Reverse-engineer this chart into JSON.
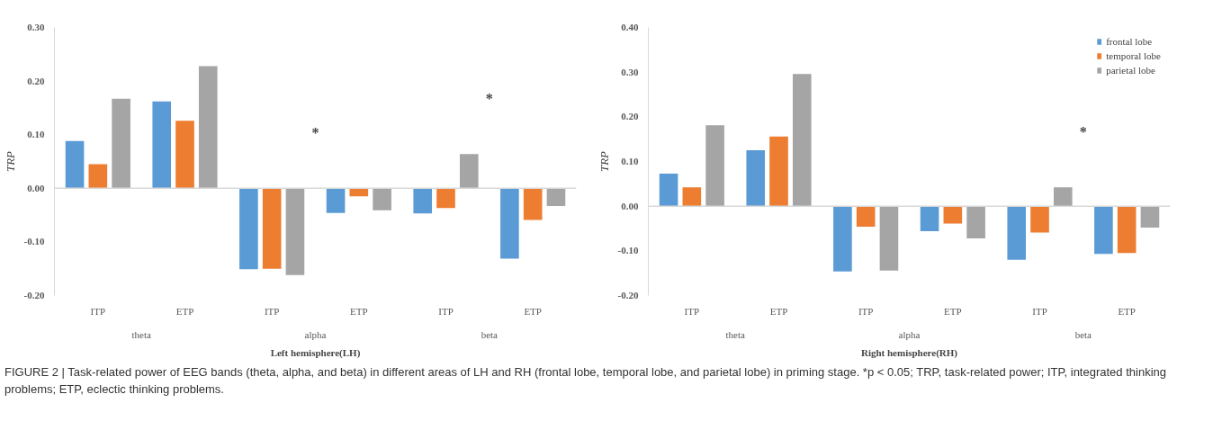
{
  "chart_data": [
    {
      "type": "bar",
      "ylabel": "TRP",
      "xlabel": "Left hemisphere(LH)",
      "categories": [
        "ITP",
        "ETP",
        "ITP",
        "ETP",
        "ITP",
        "ETP"
      ],
      "series": [
        {
          "color": "#5b9bd5",
          "values": [
            0.088,
            0.162,
            -0.151,
            -0.046,
            -0.047,
            -0.131
          ]
        },
        {
          "color": "#ed7d31",
          "values": [
            0.045,
            0.126,
            -0.15,
            -0.015,
            -0.037,
            -0.059
          ]
        },
        {
          "color": "#a5a5a5",
          "values": [
            0.167,
            0.228,
            -0.162,
            -0.041,
            0.064,
            -0.033
          ]
        }
      ],
      "ylim": [
        -0.2,
        0.3
      ],
      "yticks": [
        {
          "value": -0.2,
          "label": "-0.20"
        },
        {
          "value": -0.1,
          "label": "-0.10"
        },
        {
          "value": 0,
          "label": "0.00"
        },
        {
          "value": 0.1,
          "label": "0.10"
        },
        {
          "value": 0.2,
          "label": "0.20"
        },
        {
          "value": 0.3,
          "label": "0.30"
        }
      ],
      "ref_lines": [
        {
          "axis": "y",
          "value": 0,
          "color": "#d9d9d9"
        }
      ],
      "annotations": [
        "theta",
        "alpha",
        "beta",
        "*",
        "*"
      ]
    },
    {
      "type": "bar",
      "ylabel": "TRP",
      "xlabel": "Right hemisphere(RH)",
      "categories": [
        "ITP",
        "ETP",
        "ITP",
        "ETP",
        "ITP",
        "ETP"
      ],
      "series": [
        {
          "name": "frontal lobe",
          "color": "#5b9bd5",
          "values": [
            0.073,
            0.125,
            -0.146,
            -0.056,
            -0.12,
            -0.107
          ]
        },
        {
          "name": "temporal lobe",
          "color": "#ed7d31",
          "values": [
            0.042,
            0.156,
            -0.046,
            -0.039,
            -0.059,
            -0.105
          ]
        },
        {
          "name": "parietal lobe",
          "color": "#a5a5a5",
          "values": [
            0.181,
            0.296,
            -0.144,
            -0.072,
            0.042,
            -0.048
          ]
        }
      ],
      "ylim": [
        -0.2,
        0.4
      ],
      "yticks": [
        {
          "value": -0.2,
          "label": "-0.20"
        },
        {
          "value": -0.1,
          "label": "-0.10"
        },
        {
          "value": 0,
          "label": "0.00"
        },
        {
          "value": 0.1,
          "label": "0.10"
        },
        {
          "value": 0.2,
          "label": "0.20"
        },
        {
          "value": 0.3,
          "label": "0.30"
        },
        {
          "value": 0.4,
          "label": "0.40"
        }
      ],
      "ref_lines": [
        {
          "axis": "y",
          "value": 0,
          "color": "#d9d9d9"
        }
      ],
      "annotations": [
        "theta",
        "alpha",
        "beta",
        "*",
        "FIGURE 2 | Task-related power of EEG bands (theta, alpha, and beta) in different areas of LH and RH (frontal lobe, temporal lobe, and parietal lobe) in priming stage. *p < 0.05; TRP, task-related power; ITP, integrated thinking problems; ETP, eclectic thinking problems."
      ],
      "legend": "top right"
    }
  ]
}
